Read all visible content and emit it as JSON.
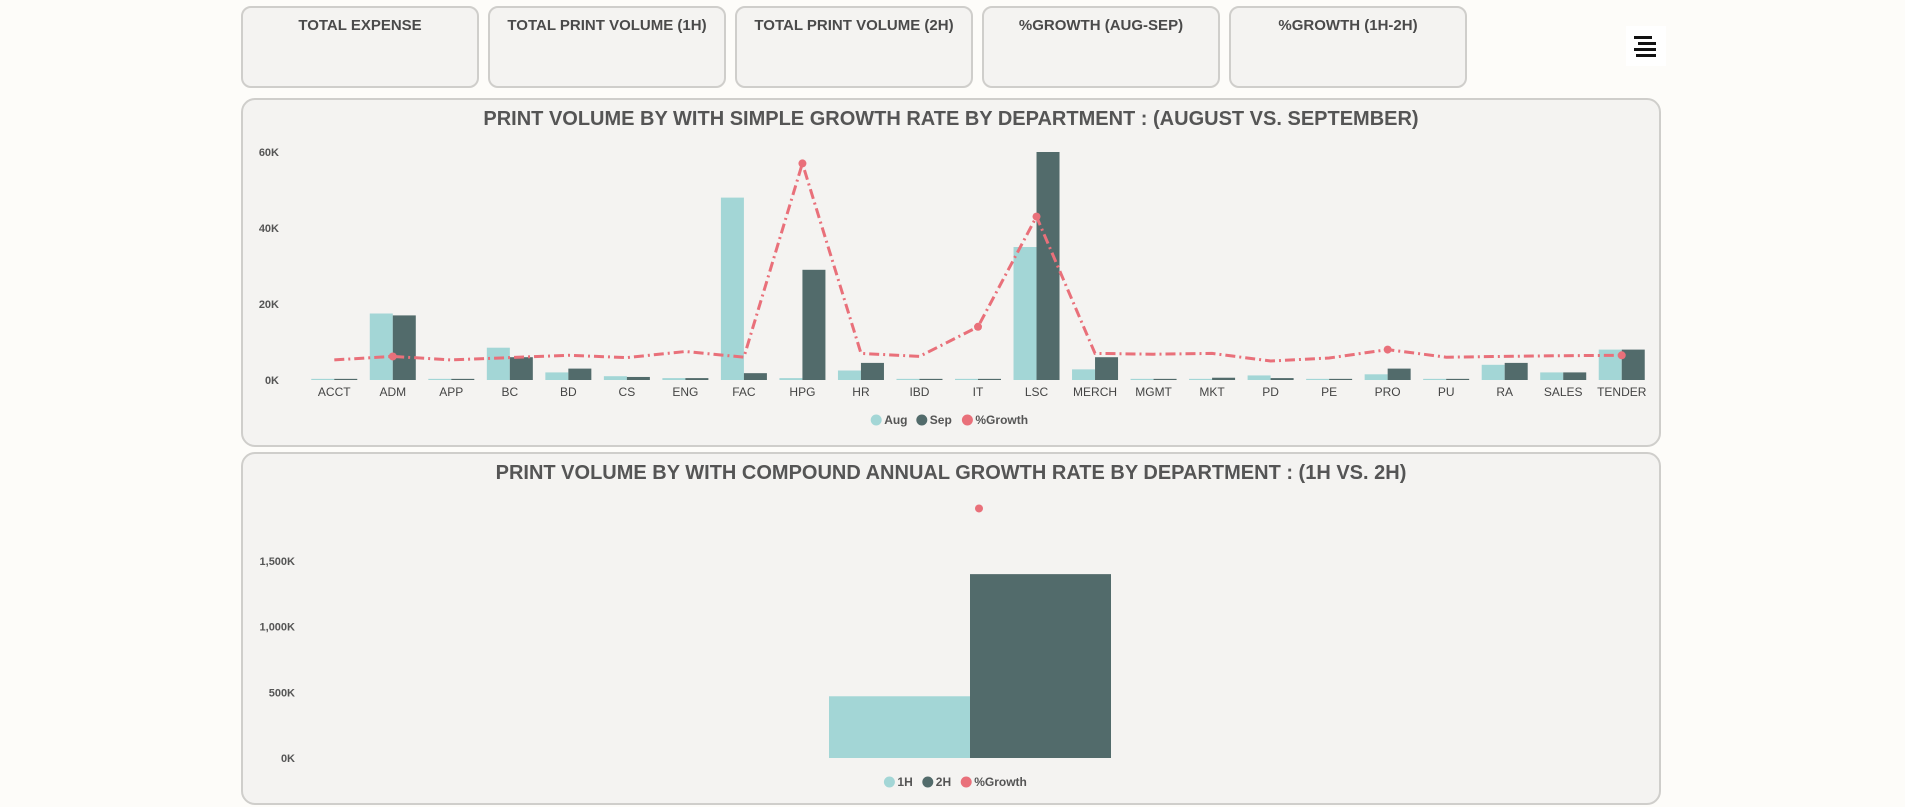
{
  "kpis": [
    {
      "label": "TOTAL EXPENSE"
    },
    {
      "label": "TOTAL PRINT VOLUME (1H)"
    },
    {
      "label": "TOTAL PRINT VOLUME (2H)"
    },
    {
      "label": "%GROWTH (AUG-SEP)"
    },
    {
      "label": "%GROWTH (1H-2H)"
    }
  ],
  "menu": {
    "icon": "menu-lines-icon"
  },
  "colors": {
    "light": "#a3d6d6",
    "dark": "#526b6b",
    "growth": "#e9707a"
  },
  "chart_data": [
    {
      "type": "bar",
      "title": "PRINT VOLUME BY WITH SIMPLE GROWTH RATE BY DEPARTMENT : (AUGUST VS. SEPTEMBER)",
      "categories": [
        "ACCT",
        "ADM",
        "APP",
        "BC",
        "BD",
        "CS",
        "ENG",
        "FAC",
        "HPG",
        "HR",
        "IBD",
        "IT",
        "LSC",
        "MERCH",
        "MGMT",
        "MKT",
        "PD",
        "PE",
        "PRO",
        "PU",
        "RA",
        "SALES",
        "TENDER"
      ],
      "series": [
        {
          "name": "Aug",
          "values": [
            300,
            17500,
            300,
            8500,
            2000,
            1000,
            500,
            48000,
            500,
            2500,
            300,
            300,
            35000,
            2800,
            300,
            300,
            1200,
            300,
            1500,
            300,
            4000,
            2000,
            8000
          ]
        },
        {
          "name": "Sep",
          "values": [
            300,
            17000,
            300,
            6000,
            3000,
            800,
            500,
            1800,
            29000,
            4500,
            300,
            300,
            60000,
            6000,
            300,
            600,
            500,
            300,
            3000,
            300,
            4500,
            2000,
            8000
          ]
        },
        {
          "name": "%Growth",
          "type": "line"
        }
      ],
      "growth_index": [
        5.3,
        6.2,
        5.3,
        5.9,
        6.5,
        5.9,
        7.5,
        6.0,
        57.0,
        7.0,
        6.2,
        14.0,
        43.0,
        7.0,
        6.8,
        7.0,
        5.0,
        5.8,
        8.0,
        6.0,
        6.2,
        6.4,
        6.5
      ],
      "y_ticks": [
        "0K",
        "20K",
        "40K",
        "60K"
      ],
      "ylim": [
        0,
        60000
      ],
      "legend": "bottom-center"
    },
    {
      "type": "bar",
      "title": "PRINT VOLUME BY WITH COMPOUND ANNUAL GROWTH RATE BY DEPARTMENT : (1H VS. 2H)",
      "categories": [
        ""
      ],
      "series": [
        {
          "name": "1H",
          "values": [
            470000
          ]
        },
        {
          "name": "2H",
          "values": [
            1400000
          ]
        },
        {
          "name": "%Growth",
          "type": "line"
        }
      ],
      "growth_index": [
        1900000
      ],
      "y_ticks": [
        "0K",
        "500K",
        "1,000K",
        "1,500K"
      ],
      "ylim": [
        0,
        1500000
      ],
      "legend": "bottom-center"
    }
  ]
}
